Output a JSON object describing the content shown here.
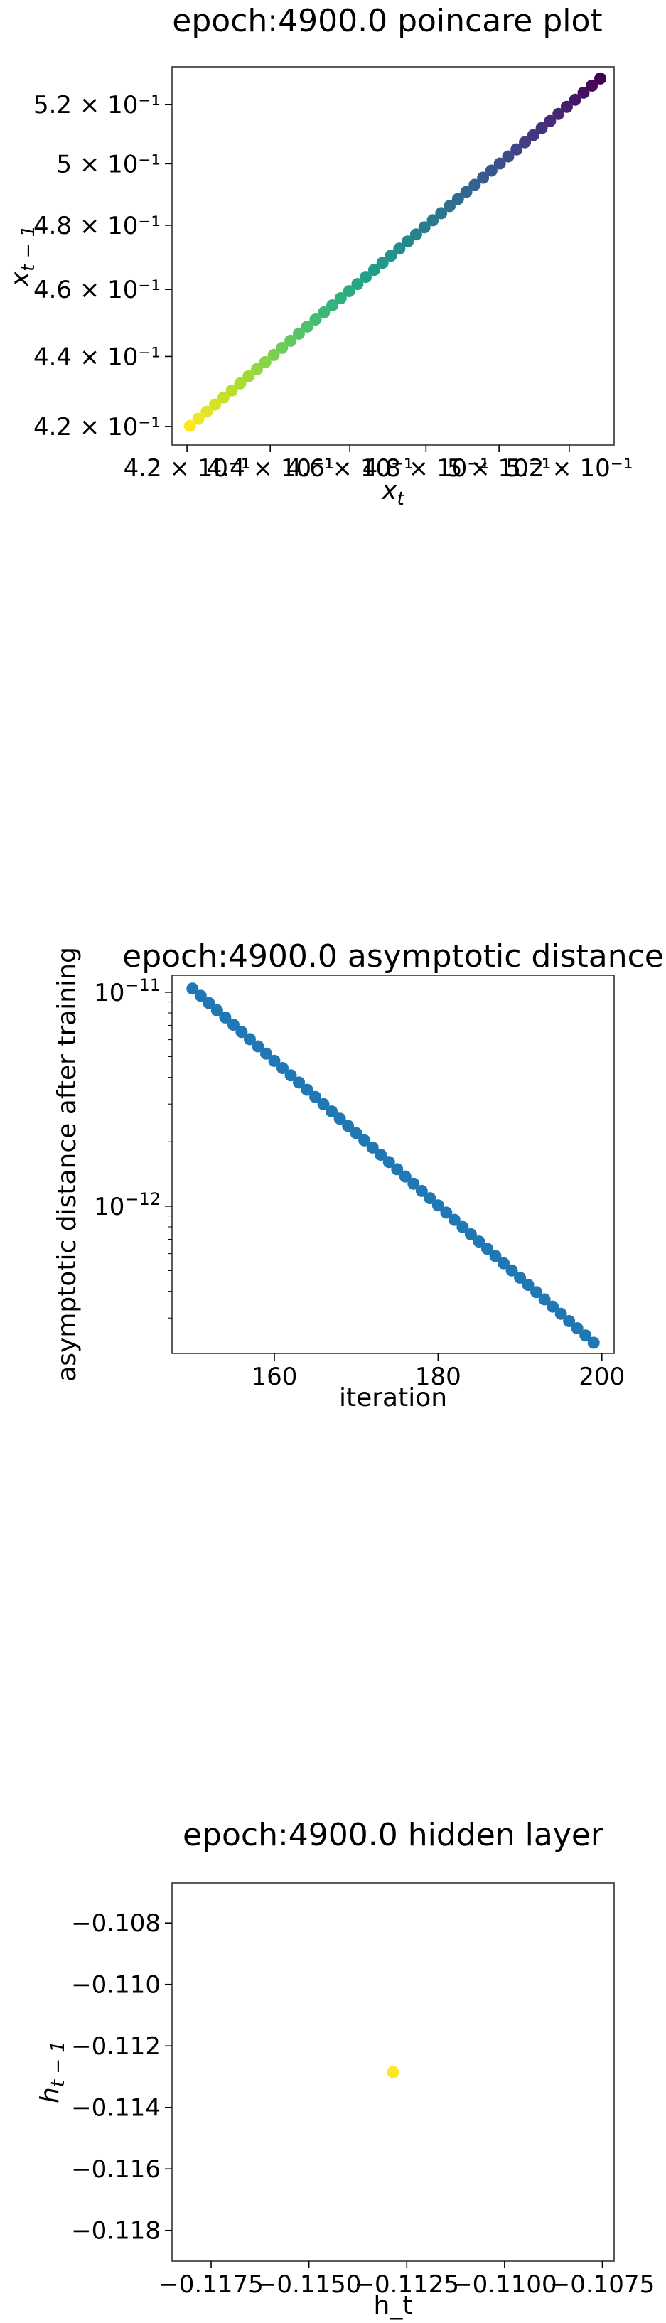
{
  "chart_data": [
    {
      "id": "poincare",
      "type": "scatter",
      "title": "epoch:4900.0 poincare plot",
      "xlabel_base": "x",
      "xlabel_sub": "t",
      "ylabel_base": "x",
      "ylabel_sub": "t − 1",
      "xscale": "log",
      "yscale": "log",
      "xlim": [
        0.4165,
        0.5332
      ],
      "ylim": [
        0.4149,
        0.5332
      ],
      "xticks": [
        {
          "value": 0.42,
          "text": "4.2 × 10⁻¹"
        },
        {
          "value": 0.44,
          "text": "4.4 × 10⁻¹"
        },
        {
          "value": 0.46,
          "text": "4.6 × 10⁻¹"
        },
        {
          "value": 0.48,
          "text": "4.8 × 10⁻¹"
        },
        {
          "value": 0.5,
          "text": "5 × 10⁻¹"
        },
        {
          "value": 0.52,
          "text": "5.2 × 10⁻¹"
        }
      ],
      "yticks": [
        {
          "value": 0.42,
          "text": "4.2 × 10⁻¹"
        },
        {
          "value": 0.44,
          "text": "4.4 × 10⁻¹"
        },
        {
          "value": 0.46,
          "text": "4.6 × 10⁻¹"
        },
        {
          "value": 0.48,
          "text": "4.8 × 10⁻¹"
        },
        {
          "value": 0.5,
          "text": "5 × 10⁻¹"
        },
        {
          "value": 0.52,
          "text": "5.2 × 10⁻¹"
        }
      ],
      "colormap": "viridis (reversed: high values dark purple, low values yellow)",
      "x_range": [
        0.4207,
        0.5291
      ],
      "y_range": [
        0.4202,
        0.5291
      ],
      "n_points": 50,
      "grid": false
    },
    {
      "id": "asymptotic",
      "type": "scatter",
      "title": "epoch:4900.0 asymptotic distance",
      "xlabel": "iteration",
      "ylabel": "asymptotic distance after training",
      "xscale": "linear",
      "yscale": "log",
      "xlim": [
        147.5,
        201.5
      ],
      "ylim": [
        2.05e-13,
        1.2e-11
      ],
      "xticks": [
        {
          "value": 160,
          "text": "160"
        },
        {
          "value": 180,
          "text": "180"
        },
        {
          "value": 200,
          "text": "200"
        }
      ],
      "yticks": [
        {
          "value": 1e-11,
          "base": "10",
          "exp": "−11"
        },
        {
          "value": 1e-12,
          "base": "10",
          "exp": "−12"
        }
      ],
      "x": [
        150,
        199
      ],
      "y_start": 1.04e-11,
      "y_end": 2.3e-13,
      "n_points": 50,
      "color": "#1f77b4",
      "grid": false
    },
    {
      "id": "hidden",
      "type": "scatter",
      "title": "epoch:4900.0 hidden layer",
      "xlabel": "h_t",
      "ylabel_base": "h",
      "ylabel_sub": "t − 1",
      "xscale": "linear",
      "yscale": "linear",
      "xlim": [
        -0.1185,
        -0.1072
      ],
      "ylim": [
        -0.119,
        -0.1067
      ],
      "xticks": [
        {
          "value": -0.1175,
          "text": "−0.1175"
        },
        {
          "value": -0.115,
          "text": "−0.1150"
        },
        {
          "value": -0.1125,
          "text": "−0.1125"
        },
        {
          "value": -0.11,
          "text": "−0.1100"
        },
        {
          "value": -0.1075,
          "text": "−0.1075"
        }
      ],
      "yticks": [
        {
          "value": -0.108,
          "text": "−0.108"
        },
        {
          "value": -0.11,
          "text": "−0.110"
        },
        {
          "value": -0.112,
          "text": "−0.112"
        },
        {
          "value": -0.114,
          "text": "−0.114"
        },
        {
          "value": -0.116,
          "text": "−0.116"
        },
        {
          "value": -0.118,
          "text": "−0.118"
        }
      ],
      "points": [
        {
          "x": -0.11285,
          "y": -0.11285
        }
      ],
      "color": "#fde725",
      "grid": false
    }
  ]
}
